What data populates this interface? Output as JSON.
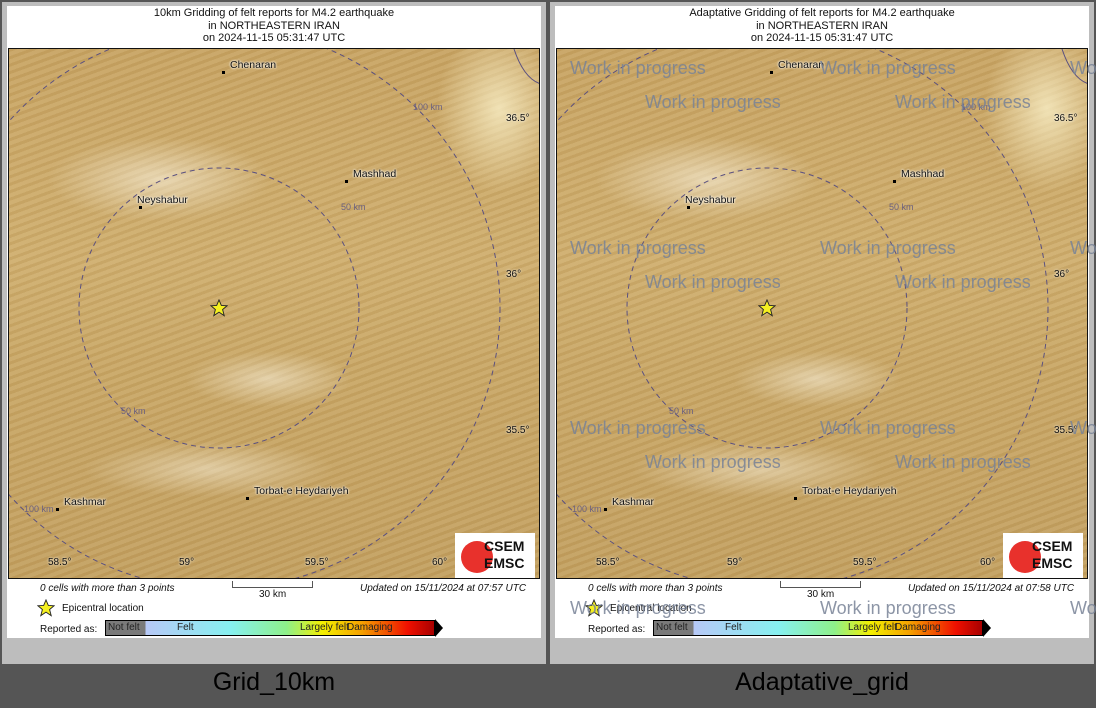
{
  "panels": [
    {
      "title": [
        "10km Gridding of felt reports for M4.2 earthquake",
        "in NORTHEASTERN IRAN",
        "on  2024-11-15 05:31:47 UTC"
      ],
      "cells_note": "0 cells with more than 3 points",
      "updated": "Updated on 15/11/2024 at 07:57 UTC",
      "caption": "Grid_10km",
      "watermark": false
    },
    {
      "title": [
        "Adaptative Gridding of felt reports for M4.2 earthquake",
        "in NORTHEASTERN IRAN",
        "on  2024-11-15 05:31:47 UTC"
      ],
      "cells_note": "0 cells with more than 3 points",
      "updated": "Updated on 15/11/2024 at 07:58 UTC",
      "caption": "Adaptative_grid",
      "watermark": true
    }
  ],
  "map": {
    "cities": [
      {
        "name": "Chenaran"
      },
      {
        "name": "Mashhad"
      },
      {
        "name": "Neyshabur"
      },
      {
        "name": "Kashmar"
      },
      {
        "name": "Torbat-e Heydariyeh"
      }
    ],
    "distance_labels": [
      "100 km",
      "50 km",
      "50 km",
      "100 km"
    ],
    "lat_ticks": [
      "36.5°",
      "36°",
      "35.5°"
    ],
    "lon_ticks": [
      "58.5°",
      "59°",
      "59.5°",
      "60°"
    ],
    "epicenter_icon": "star-icon",
    "logo": [
      "CSEM",
      "EMSC"
    ]
  },
  "legend": {
    "scale": "30 km",
    "epicentral": "Epicentral location",
    "reported_as": "Reported as:",
    "classes": [
      "Not felt",
      "Felt",
      "Largely felt",
      "Damaging"
    ]
  },
  "watermark_text": "Work in progress",
  "colors": {
    "epicenter": "#f5f020",
    "circle": "#5a5080",
    "frame_bg": "#bdbdbd",
    "caption_bg": "#555555"
  }
}
